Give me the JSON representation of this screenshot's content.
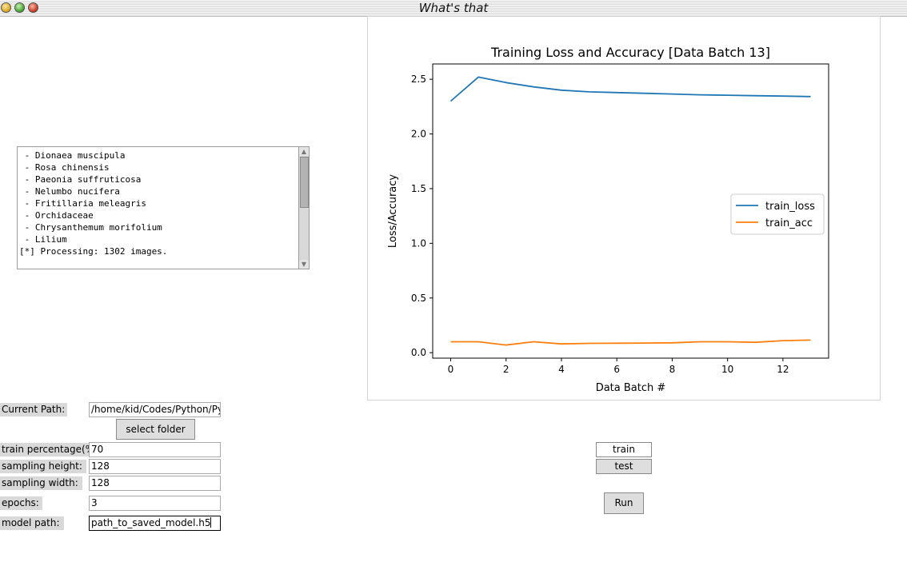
{
  "window": {
    "title": "What's that"
  },
  "log": {
    "lines": [
      " - Dionaea muscipula",
      " - Rosa chinensis",
      " - Paeonia suffruticosa",
      " - Nelumbo nucifera",
      " - Fritillaria meleagris",
      " - Orchidaceae",
      " - Chrysanthemum morifolium",
      " - Lilium",
      "[*] Processing: 1302 images."
    ]
  },
  "form": {
    "current_path_label": "Current Path:",
    "current_path_value": "/home/kid/Codes/Python/Py",
    "select_folder_label": "select folder",
    "train_percentage_label": "train percentage(%",
    "train_percentage_value": "70",
    "sampling_height_label": "sampling height:",
    "sampling_height_value": "128",
    "sampling_width_label": "sampling width:",
    "sampling_width_value": "128",
    "epochs_label": "epochs:",
    "epochs_value": "3",
    "model_path_label": "model path:",
    "model_path_value": "path_to_saved_model.h5"
  },
  "mode": {
    "train_label": "train",
    "test_label": "test",
    "selected": "train"
  },
  "run_label": "Run",
  "colors": {
    "loss": "#1f77b4",
    "acc": "#ff7f0e"
  },
  "chart_data": {
    "type": "line",
    "title": "Training Loss and Accuracy [Data Batch 13]",
    "xlabel": "Data Batch #",
    "ylabel": "Loss/Accuracy",
    "xlim": [
      -0.65,
      13.65
    ],
    "ylim": [
      -0.05,
      2.64
    ],
    "xticks": [
      0,
      2,
      4,
      6,
      8,
      10,
      12
    ],
    "yticks": [
      0.0,
      0.5,
      1.0,
      1.5,
      2.0,
      2.5
    ],
    "legend_position": "center-right",
    "x": [
      0,
      1,
      2,
      3,
      4,
      5,
      6,
      7,
      8,
      9,
      10,
      11,
      12,
      13
    ],
    "series": [
      {
        "name": "train_loss",
        "values": [
          2.3,
          2.52,
          2.47,
          2.43,
          2.4,
          2.385,
          2.378,
          2.372,
          2.365,
          2.358,
          2.354,
          2.35,
          2.346,
          2.342
        ]
      },
      {
        "name": "train_acc",
        "values": [
          0.1,
          0.1,
          0.07,
          0.1,
          0.08,
          0.085,
          0.087,
          0.088,
          0.09,
          0.1,
          0.1,
          0.095,
          0.11,
          0.115
        ]
      }
    ]
  }
}
